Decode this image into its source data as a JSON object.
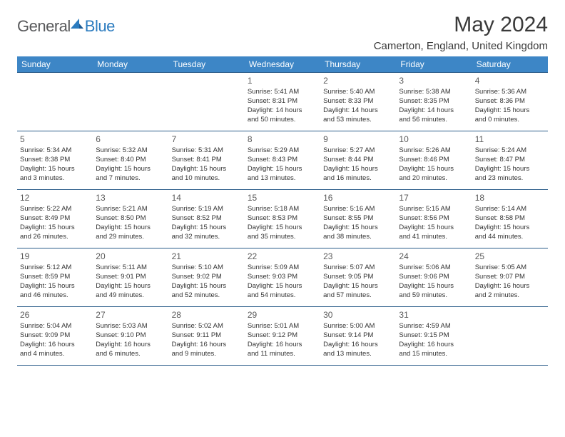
{
  "logo": {
    "part1": "General",
    "part2": "Blue"
  },
  "title": "May 2024",
  "location": "Camerton, England, United Kingdom",
  "weekday_header_bg": "#3d86c6",
  "weekday_header_fg": "#ffffff",
  "border_color": "#2b5d8a",
  "weekdays": [
    "Sunday",
    "Monday",
    "Tuesday",
    "Wednesday",
    "Thursday",
    "Friday",
    "Saturday"
  ],
  "weeks": [
    [
      null,
      null,
      null,
      {
        "n": "1",
        "sr": "Sunrise: 5:41 AM",
        "ss": "Sunset: 8:31 PM",
        "d1": "Daylight: 14 hours",
        "d2": "and 50 minutes."
      },
      {
        "n": "2",
        "sr": "Sunrise: 5:40 AM",
        "ss": "Sunset: 8:33 PM",
        "d1": "Daylight: 14 hours",
        "d2": "and 53 minutes."
      },
      {
        "n": "3",
        "sr": "Sunrise: 5:38 AM",
        "ss": "Sunset: 8:35 PM",
        "d1": "Daylight: 14 hours",
        "d2": "and 56 minutes."
      },
      {
        "n": "4",
        "sr": "Sunrise: 5:36 AM",
        "ss": "Sunset: 8:36 PM",
        "d1": "Daylight: 15 hours",
        "d2": "and 0 minutes."
      }
    ],
    [
      {
        "n": "5",
        "sr": "Sunrise: 5:34 AM",
        "ss": "Sunset: 8:38 PM",
        "d1": "Daylight: 15 hours",
        "d2": "and 3 minutes."
      },
      {
        "n": "6",
        "sr": "Sunrise: 5:32 AM",
        "ss": "Sunset: 8:40 PM",
        "d1": "Daylight: 15 hours",
        "d2": "and 7 minutes."
      },
      {
        "n": "7",
        "sr": "Sunrise: 5:31 AM",
        "ss": "Sunset: 8:41 PM",
        "d1": "Daylight: 15 hours",
        "d2": "and 10 minutes."
      },
      {
        "n": "8",
        "sr": "Sunrise: 5:29 AM",
        "ss": "Sunset: 8:43 PM",
        "d1": "Daylight: 15 hours",
        "d2": "and 13 minutes."
      },
      {
        "n": "9",
        "sr": "Sunrise: 5:27 AM",
        "ss": "Sunset: 8:44 PM",
        "d1": "Daylight: 15 hours",
        "d2": "and 16 minutes."
      },
      {
        "n": "10",
        "sr": "Sunrise: 5:26 AM",
        "ss": "Sunset: 8:46 PM",
        "d1": "Daylight: 15 hours",
        "d2": "and 20 minutes."
      },
      {
        "n": "11",
        "sr": "Sunrise: 5:24 AM",
        "ss": "Sunset: 8:47 PM",
        "d1": "Daylight: 15 hours",
        "d2": "and 23 minutes."
      }
    ],
    [
      {
        "n": "12",
        "sr": "Sunrise: 5:22 AM",
        "ss": "Sunset: 8:49 PM",
        "d1": "Daylight: 15 hours",
        "d2": "and 26 minutes."
      },
      {
        "n": "13",
        "sr": "Sunrise: 5:21 AM",
        "ss": "Sunset: 8:50 PM",
        "d1": "Daylight: 15 hours",
        "d2": "and 29 minutes."
      },
      {
        "n": "14",
        "sr": "Sunrise: 5:19 AM",
        "ss": "Sunset: 8:52 PM",
        "d1": "Daylight: 15 hours",
        "d2": "and 32 minutes."
      },
      {
        "n": "15",
        "sr": "Sunrise: 5:18 AM",
        "ss": "Sunset: 8:53 PM",
        "d1": "Daylight: 15 hours",
        "d2": "and 35 minutes."
      },
      {
        "n": "16",
        "sr": "Sunrise: 5:16 AM",
        "ss": "Sunset: 8:55 PM",
        "d1": "Daylight: 15 hours",
        "d2": "and 38 minutes."
      },
      {
        "n": "17",
        "sr": "Sunrise: 5:15 AM",
        "ss": "Sunset: 8:56 PM",
        "d1": "Daylight: 15 hours",
        "d2": "and 41 minutes."
      },
      {
        "n": "18",
        "sr": "Sunrise: 5:14 AM",
        "ss": "Sunset: 8:58 PM",
        "d1": "Daylight: 15 hours",
        "d2": "and 44 minutes."
      }
    ],
    [
      {
        "n": "19",
        "sr": "Sunrise: 5:12 AM",
        "ss": "Sunset: 8:59 PM",
        "d1": "Daylight: 15 hours",
        "d2": "and 46 minutes."
      },
      {
        "n": "20",
        "sr": "Sunrise: 5:11 AM",
        "ss": "Sunset: 9:01 PM",
        "d1": "Daylight: 15 hours",
        "d2": "and 49 minutes."
      },
      {
        "n": "21",
        "sr": "Sunrise: 5:10 AM",
        "ss": "Sunset: 9:02 PM",
        "d1": "Daylight: 15 hours",
        "d2": "and 52 minutes."
      },
      {
        "n": "22",
        "sr": "Sunrise: 5:09 AM",
        "ss": "Sunset: 9:03 PM",
        "d1": "Daylight: 15 hours",
        "d2": "and 54 minutes."
      },
      {
        "n": "23",
        "sr": "Sunrise: 5:07 AM",
        "ss": "Sunset: 9:05 PM",
        "d1": "Daylight: 15 hours",
        "d2": "and 57 minutes."
      },
      {
        "n": "24",
        "sr": "Sunrise: 5:06 AM",
        "ss": "Sunset: 9:06 PM",
        "d1": "Daylight: 15 hours",
        "d2": "and 59 minutes."
      },
      {
        "n": "25",
        "sr": "Sunrise: 5:05 AM",
        "ss": "Sunset: 9:07 PM",
        "d1": "Daylight: 16 hours",
        "d2": "and 2 minutes."
      }
    ],
    [
      {
        "n": "26",
        "sr": "Sunrise: 5:04 AM",
        "ss": "Sunset: 9:09 PM",
        "d1": "Daylight: 16 hours",
        "d2": "and 4 minutes."
      },
      {
        "n": "27",
        "sr": "Sunrise: 5:03 AM",
        "ss": "Sunset: 9:10 PM",
        "d1": "Daylight: 16 hours",
        "d2": "and 6 minutes."
      },
      {
        "n": "28",
        "sr": "Sunrise: 5:02 AM",
        "ss": "Sunset: 9:11 PM",
        "d1": "Daylight: 16 hours",
        "d2": "and 9 minutes."
      },
      {
        "n": "29",
        "sr": "Sunrise: 5:01 AM",
        "ss": "Sunset: 9:12 PM",
        "d1": "Daylight: 16 hours",
        "d2": "and 11 minutes."
      },
      {
        "n": "30",
        "sr": "Sunrise: 5:00 AM",
        "ss": "Sunset: 9:14 PM",
        "d1": "Daylight: 16 hours",
        "d2": "and 13 minutes."
      },
      {
        "n": "31",
        "sr": "Sunrise: 4:59 AM",
        "ss": "Sunset: 9:15 PM",
        "d1": "Daylight: 16 hours",
        "d2": "and 15 minutes."
      },
      null
    ]
  ]
}
